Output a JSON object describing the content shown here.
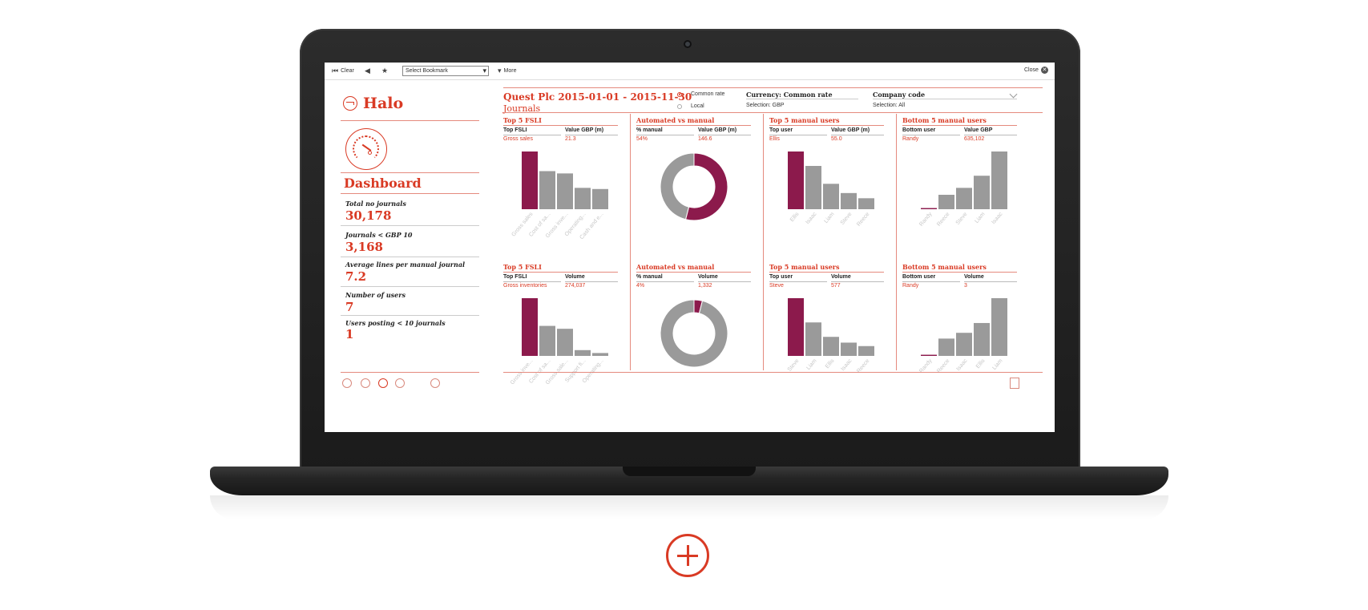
{
  "toolbar": {
    "clear_label": "Clear",
    "bookmark_value": "Select Bookmark",
    "more_label": "More",
    "close_label": "Close"
  },
  "sidebar": {
    "logo": "Halo",
    "dashboard_title": "Dashboard",
    "stats": [
      {
        "label": "Total no journals",
        "value": "30,178"
      },
      {
        "label": "Journals < GBP 10",
        "value": "3,168"
      },
      {
        "label": "Average lines per manual journal",
        "value": "7.2"
      },
      {
        "label": "Number of users",
        "value": "7"
      },
      {
        "label": "Users posting < 10 journals",
        "value": "1"
      }
    ]
  },
  "header": {
    "title": "Quest Plc 2015-01-01 - 2015-11-30",
    "subtitle": "Journals",
    "radio_common": "Common rate",
    "radio_local": "Local",
    "currency_title": "Currency: Common rate",
    "currency_selection": "Selection: GBP",
    "company_title": "Company code",
    "company_selection": "Selection: All"
  },
  "colors": {
    "accent": "#d93a24",
    "highlight": "#8c1a4c",
    "bar": "#9a9a9a"
  },
  "panels": [
    {
      "title": "Top 5 FSLI",
      "h1": "Top FSLI",
      "h2": "Value GBP (m)",
      "v1": "Gross sales",
      "v2": "21.3"
    },
    {
      "title": "Automated vs manual",
      "h1": "% manual",
      "h2": "Value GBP (m)",
      "v1": "54%",
      "v2": "146.6"
    },
    {
      "title": "Top 5 manual users",
      "h1": "Top user",
      "h2": "Value GBP (m)",
      "v1": "Ellis",
      "v2": "55.0"
    },
    {
      "title": "Bottom 5 manual users",
      "h1": "Bottom user",
      "h2": "Value GBP",
      "v1": "Randy",
      "v2": "635,102"
    },
    {
      "title": "Top 5 FSLI",
      "h1": "Top FSLI",
      "h2": "Volume",
      "v1": "Gross inventories",
      "v2": "274,037"
    },
    {
      "title": "Automated vs manual",
      "h1": "% manual",
      "h2": "Volume",
      "v1": "4%",
      "v2": "1,332"
    },
    {
      "title": "Top 5 manual users",
      "h1": "Top user",
      "h2": "Volume",
      "v1": "Steve",
      "v2": "577"
    },
    {
      "title": "Bottom 5 manual users",
      "h1": "Bottom user",
      "h2": "Volume",
      "v1": "Randy",
      "v2": "3"
    }
  ],
  "chart_data": [
    {
      "type": "bar",
      "categories": [
        "Gross sales",
        "Cost of sa...",
        "Gross inve...",
        "Operating...",
        "Cash and e..."
      ],
      "values": [
        100,
        66,
        62,
        37,
        35
      ],
      "highlight_index": 0
    },
    {
      "type": "pie",
      "categories": [
        "Manual",
        "Automated"
      ],
      "values": [
        54,
        46
      ]
    },
    {
      "type": "bar",
      "categories": [
        "Ellis",
        "Isaac",
        "Liam",
        "Steve",
        "Reece"
      ],
      "values": [
        100,
        75,
        44,
        28,
        19
      ],
      "highlight_index": 0
    },
    {
      "type": "bar",
      "categories": [
        "Randy",
        "Reece",
        "Steve",
        "Liam",
        "Isaac"
      ],
      "values": [
        2,
        25,
        37,
        58,
        100
      ],
      "highlight_index": 0
    },
    {
      "type": "bar",
      "categories": [
        "Gross inve...",
        "Cost of sa...",
        "Gross sale...",
        "Support fi...",
        "Operating..."
      ],
      "values": [
        100,
        52,
        47,
        10,
        5
      ],
      "highlight_index": 0
    },
    {
      "type": "pie",
      "categories": [
        "Manual",
        "Automated"
      ],
      "values": [
        4,
        96
      ]
    },
    {
      "type": "bar",
      "categories": [
        "Steve",
        "Liam",
        "Ellis",
        "Isaac",
        "Reece"
      ],
      "values": [
        100,
        58,
        33,
        23,
        17
      ],
      "highlight_index": 0
    },
    {
      "type": "bar",
      "categories": [
        "Randy",
        "Reece",
        "Isaac",
        "Ellis",
        "Liam"
      ],
      "values": [
        2,
        30,
        40,
        57,
        100
      ],
      "highlight_index": 0
    }
  ]
}
